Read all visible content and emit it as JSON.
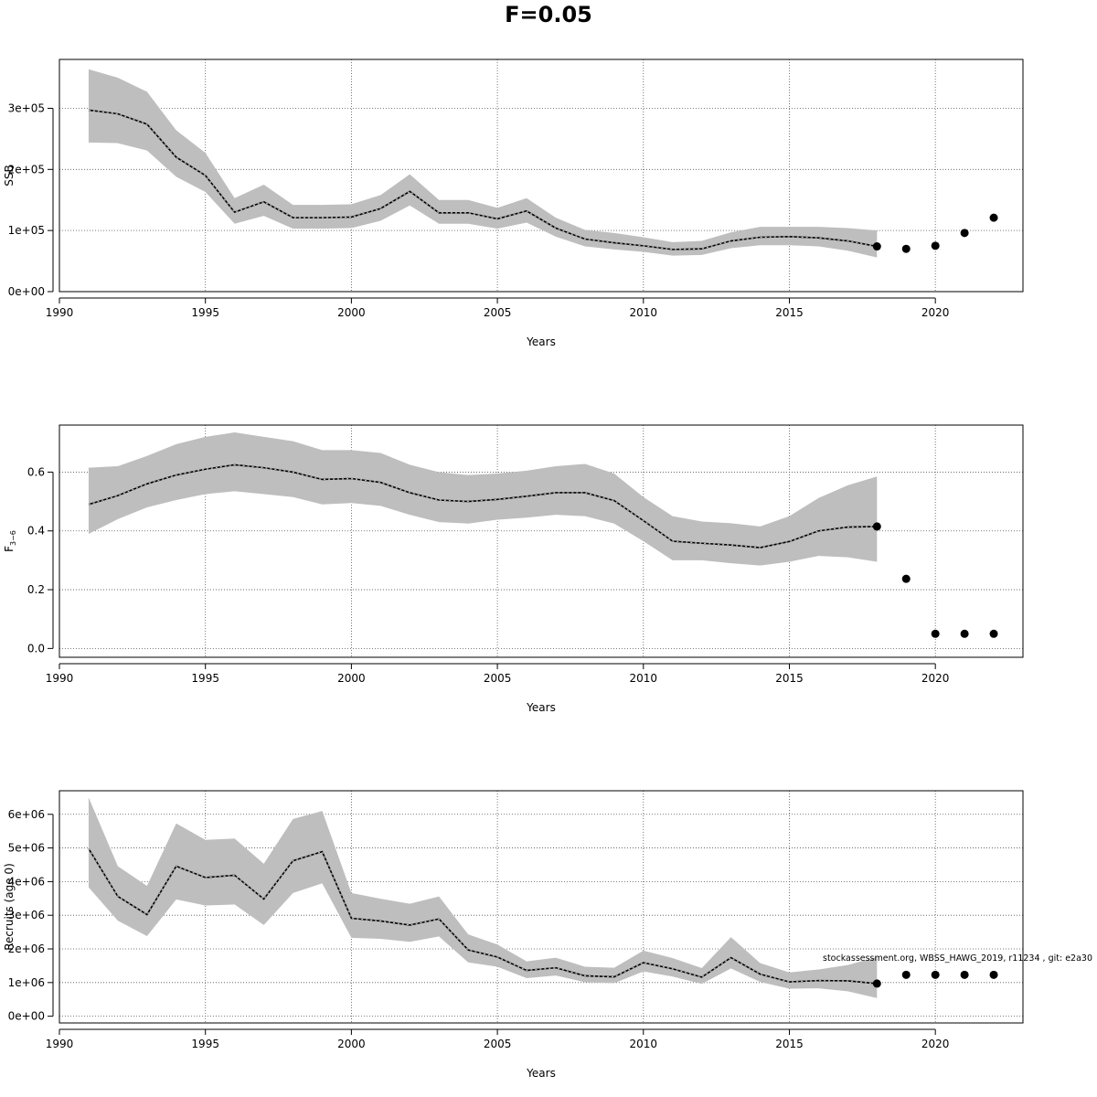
{
  "page_title": "F=0.05",
  "watermark": "stockassessment.org, WBSS_HAWG_2019, r11234 , git: e2a30",
  "chart_data": [
    {
      "type": "line",
      "title": "",
      "xlabel": "Years",
      "ylabel": "SSB",
      "xlim": [
        1990,
        2023
      ],
      "ylim": [
        0,
        380000
      ],
      "x_ticks": [
        1990,
        1995,
        2000,
        2005,
        2010,
        2015,
        2020
      ],
      "y_ticks": [
        0,
        100000,
        200000,
        300000
      ],
      "y_tick_labels": [
        "0e+00",
        "1e+05",
        "2e+05",
        "3e+05"
      ],
      "grid": true,
      "band_color": "#bebebe",
      "series": [
        {
          "x": [
            1991,
            1992,
            1993,
            1994,
            1995,
            1996,
            1997,
            1998,
            1999,
            2000,
            2001,
            2002,
            2003,
            2004,
            2005,
            2006,
            2007,
            2008,
            2009,
            2010,
            2011,
            2012,
            2013,
            2014,
            2015,
            2016,
            2017,
            2018
          ],
          "values": [
            297000,
            291000,
            274000,
            220000,
            190000,
            130000,
            147000,
            121000,
            121000,
            122000,
            136000,
            164000,
            129000,
            129000,
            119000,
            132000,
            104000,
            86000,
            80000,
            75000,
            69000,
            70000,
            83000,
            89000,
            90000,
            88000,
            83000,
            74000
          ],
          "lower": [
            244000,
            243000,
            231000,
            188000,
            163000,
            111000,
            124000,
            103000,
            103000,
            104000,
            116000,
            141000,
            111000,
            111000,
            103000,
            113000,
            90000,
            74000,
            69000,
            65000,
            59000,
            60000,
            71000,
            76000,
            76000,
            74000,
            67000,
            56000
          ],
          "upper": [
            364000,
            350000,
            327000,
            264000,
            227000,
            153000,
            175000,
            142000,
            142000,
            143000,
            158000,
            192000,
            150000,
            150000,
            137000,
            153000,
            121000,
            101000,
            96000,
            89000,
            81000,
            83000,
            97000,
            106000,
            106000,
            106000,
            104000,
            100000
          ]
        },
        {
          "type": "scatter",
          "x": [
            2018,
            2019,
            2020,
            2021,
            2022
          ],
          "values": [
            74000,
            70000,
            75000,
            96000,
            121000
          ]
        }
      ]
    },
    {
      "type": "line",
      "title": "",
      "xlabel": "Years",
      "ylabel": "F",
      "ylabel_subscript": "3−6",
      "xlim": [
        1990,
        2023
      ],
      "ylim": [
        -0.03,
        0.76
      ],
      "x_ticks": [
        1990,
        1995,
        2000,
        2005,
        2010,
        2015,
        2020
      ],
      "y_ticks": [
        0,
        0.2,
        0.4,
        0.6
      ],
      "y_tick_labels": [
        "0.0",
        "0.2",
        "0.4",
        "0.6"
      ],
      "grid": true,
      "band_color": "#bebebe",
      "series": [
        {
          "x": [
            1991,
            1992,
            1993,
            1994,
            1995,
            1996,
            1997,
            1998,
            1999,
            2000,
            2001,
            2002,
            2003,
            2004,
            2005,
            2006,
            2007,
            2008,
            2009,
            2010,
            2011,
            2012,
            2013,
            2014,
            2015,
            2016,
            2017,
            2018
          ],
          "values": [
            0.49,
            0.52,
            0.56,
            0.59,
            0.61,
            0.625,
            0.615,
            0.6,
            0.575,
            0.578,
            0.565,
            0.53,
            0.505,
            0.5,
            0.507,
            0.518,
            0.53,
            0.53,
            0.503,
            0.435,
            0.365,
            0.358,
            0.352,
            0.343,
            0.364,
            0.4,
            0.413,
            0.415
          ],
          "lower": [
            0.39,
            0.44,
            0.48,
            0.505,
            0.525,
            0.535,
            0.525,
            0.515,
            0.49,
            0.495,
            0.485,
            0.455,
            0.43,
            0.425,
            0.438,
            0.445,
            0.455,
            0.45,
            0.425,
            0.365,
            0.3,
            0.3,
            0.29,
            0.282,
            0.295,
            0.315,
            0.31,
            0.295
          ],
          "upper": [
            0.615,
            0.62,
            0.655,
            0.695,
            0.72,
            0.735,
            0.72,
            0.705,
            0.675,
            0.675,
            0.665,
            0.625,
            0.6,
            0.59,
            0.595,
            0.605,
            0.62,
            0.628,
            0.595,
            0.515,
            0.45,
            0.432,
            0.426,
            0.415,
            0.45,
            0.512,
            0.555,
            0.585
          ]
        },
        {
          "type": "scatter",
          "x": [
            2018,
            2019,
            2020,
            2021,
            2022
          ],
          "values": [
            0.415,
            0.237,
            0.05,
            0.05,
            0.05
          ]
        }
      ]
    },
    {
      "type": "line",
      "title": "",
      "xlabel": "Years",
      "ylabel": "Recruits (age 0)",
      "xlim": [
        1990,
        2023
      ],
      "ylim": [
        -200000,
        6700000
      ],
      "x_ticks": [
        1990,
        1995,
        2000,
        2005,
        2010,
        2015,
        2020
      ],
      "y_ticks": [
        0,
        1000000,
        2000000,
        3000000,
        4000000,
        5000000,
        6000000
      ],
      "y_tick_labels": [
        "0e+00",
        "1e+06",
        "2e+06",
        "3e+06",
        "4e+06",
        "5e+06",
        "6e+06"
      ],
      "grid": true,
      "band_color": "#bebebe",
      "series": [
        {
          "x": [
            1991,
            1992,
            1993,
            1994,
            1995,
            1996,
            1997,
            1998,
            1999,
            2000,
            2001,
            2002,
            2003,
            2004,
            2005,
            2006,
            2007,
            2008,
            2009,
            2010,
            2011,
            2012,
            2013,
            2014,
            2015,
            2016,
            2017,
            2018
          ],
          "values": [
            4980000,
            3560000,
            3020000,
            4460000,
            4120000,
            4190000,
            3480000,
            4620000,
            4890000,
            2910000,
            2830000,
            2710000,
            2890000,
            1970000,
            1760000,
            1360000,
            1440000,
            1200000,
            1170000,
            1590000,
            1410000,
            1160000,
            1740000,
            1250000,
            1020000,
            1060000,
            1050000,
            970000
          ],
          "lower": [
            3830000,
            2840000,
            2380000,
            3470000,
            3290000,
            3320000,
            2710000,
            3660000,
            3950000,
            2330000,
            2300000,
            2210000,
            2370000,
            1600000,
            1470000,
            1130000,
            1210000,
            1010000,
            980000,
            1330000,
            1180000,
            960000,
            1420000,
            1020000,
            820000,
            830000,
            740000,
            540000
          ],
          "upper": [
            6500000,
            4460000,
            3870000,
            5730000,
            5240000,
            5280000,
            4530000,
            5860000,
            6100000,
            3660000,
            3490000,
            3340000,
            3560000,
            2430000,
            2130000,
            1630000,
            1740000,
            1470000,
            1440000,
            1950000,
            1730000,
            1430000,
            2350000,
            1580000,
            1300000,
            1390000,
            1520000,
            1760000
          ]
        },
        {
          "type": "scatter",
          "x": [
            2018,
            2019,
            2020,
            2021,
            2022
          ],
          "values": [
            970000,
            1230000,
            1230000,
            1230000,
            1230000
          ]
        }
      ]
    }
  ]
}
